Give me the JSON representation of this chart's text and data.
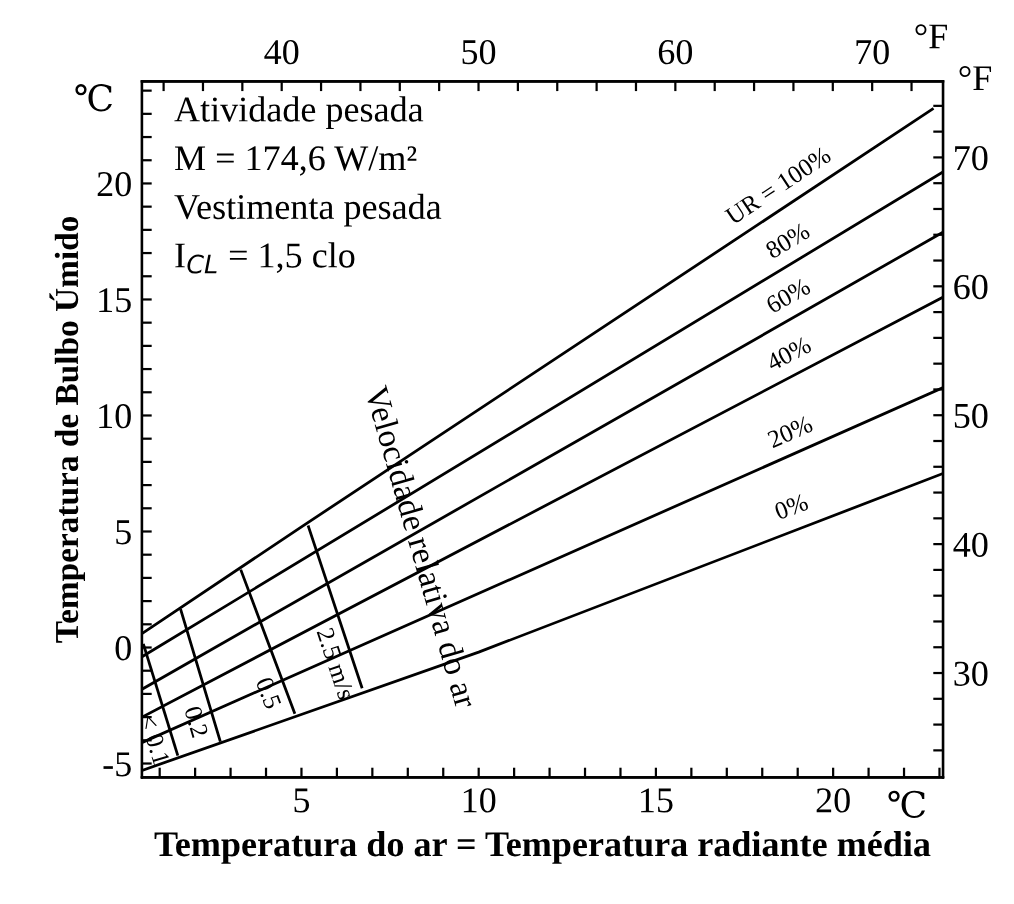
{
  "chart_data": {
    "type": "line",
    "xlabel": "Temperatura do ar = Temperatura radiante média",
    "ylabel": "Temperatura de Bulbo Úmido",
    "annotations": [
      "Atividade pesada",
      "M = 174,6 W/m²",
      "Vestimenta pesada",
      "I$_{CL}$ = 1,5 clo",
      "Velocidade relativa do ar",
      "℃",
      "°F",
      "°F",
      "℃"
    ],
    "xlim": [
      0.5,
      23.1
    ],
    "ylim": [
      -5.6,
      24.4
    ],
    "x2lim": [
      32.9,
      73.6
    ],
    "y2lim": [
      21.9,
      75.9
    ],
    "xticks": [
      {
        "value": 1,
        "label": null
      },
      {
        "value": 2,
        "label": null
      },
      {
        "value": 3,
        "label": null
      },
      {
        "value": 4,
        "label": null
      },
      5,
      {
        "value": 6,
        "label": null
      },
      {
        "value": 7,
        "label": null
      },
      {
        "value": 8,
        "label": null
      },
      {
        "value": 9,
        "label": null
      },
      10,
      {
        "value": 11,
        "label": null
      },
      {
        "value": 12,
        "label": null
      },
      {
        "value": 13,
        "label": null
      },
      {
        "value": 14,
        "label": null
      },
      15,
      {
        "value": 16,
        "label": null
      },
      {
        "value": 17,
        "label": null
      },
      {
        "value": 18,
        "label": null
      },
      {
        "value": 19,
        "label": null
      },
      20,
      {
        "value": 21,
        "label": null
      },
      {
        "value": 22,
        "label": null
      },
      {
        "value": 23,
        "label": null
      }
    ],
    "yticks": [
      -5,
      {
        "value": -4,
        "label": null
      },
      {
        "value": -3,
        "label": null
      },
      {
        "value": -2,
        "label": null
      },
      {
        "value": -1,
        "label": null
      },
      0,
      {
        "value": 1,
        "label": null
      },
      {
        "value": 2,
        "label": null
      },
      {
        "value": 3,
        "label": null
      },
      {
        "value": 4,
        "label": null
      },
      5,
      {
        "value": 6,
        "label": null
      },
      {
        "value": 7,
        "label": null
      },
      {
        "value": 8,
        "label": null
      },
      {
        "value": 9,
        "label": null
      },
      10,
      {
        "value": 11,
        "label": null
      },
      {
        "value": 12,
        "label": null
      },
      {
        "value": 13,
        "label": null
      },
      {
        "value": 14,
        "label": null
      },
      15,
      {
        "value": 16,
        "label": null
      },
      {
        "value": 17,
        "label": null
      },
      {
        "value": 18,
        "label": null
      },
      {
        "value": 19,
        "label": null
      },
      20,
      {
        "value": 21,
        "label": null
      },
      {
        "value": 22,
        "label": null
      },
      {
        "value": 23,
        "label": null
      },
      {
        "value": 24,
        "label": null
      }
    ],
    "x2ticks": [
      {
        "value": 34,
        "label": null
      },
      {
        "value": 36,
        "label": null
      },
      {
        "value": 38,
        "label": null
      },
      40,
      {
        "value": 42,
        "label": null
      },
      {
        "value": 44,
        "label": null
      },
      {
        "value": 46,
        "label": null
      },
      {
        "value": 48,
        "label": null
      },
      50,
      {
        "value": 52,
        "label": null
      },
      {
        "value": 54,
        "label": null
      },
      {
        "value": 56,
        "label": null
      },
      {
        "value": 58,
        "label": null
      },
      60,
      {
        "value": 62,
        "label": null
      },
      {
        "value": 64,
        "label": null
      },
      {
        "value": 66,
        "label": null
      },
      {
        "value": 68,
        "label": null
      },
      70,
      {
        "value": 72,
        "label": null
      }
    ],
    "y2ticks": [
      {
        "value": 24,
        "label": null
      },
      {
        "value": 26,
        "label": null
      },
      {
        "value": 28,
        "label": null
      },
      30,
      {
        "value": 32,
        "label": null
      },
      {
        "value": 34,
        "label": null
      },
      {
        "value": 36,
        "label": null
      },
      {
        "value": 38,
        "label": null
      },
      40,
      {
        "value": 42,
        "label": null
      },
      {
        "value": 44,
        "label": null
      },
      {
        "value": 46,
        "label": null
      },
      {
        "value": 48,
        "label": null
      },
      50,
      {
        "value": 52,
        "label": null
      },
      {
        "value": 54,
        "label": null
      },
      {
        "value": 56,
        "label": null
      },
      {
        "value": 58,
        "label": null
      },
      60,
      {
        "value": 62,
        "label": null
      },
      {
        "value": 64,
        "label": null
      },
      {
        "value": 66,
        "label": null
      },
      {
        "value": 68,
        "label": null
      },
      70,
      {
        "value": 72,
        "label": null
      },
      {
        "value": 74,
        "label": null
      }
    ],
    "grid": false,
    "legend": false,
    "marker": "none",
    "line_style": "solid",
    "series": [
      {
        "name": "UR = 100%",
        "color": "#000000",
        "x": [
          0.5,
          5,
          22.8
        ],
        "values": [
          0.6,
          5.2,
          23.2
        ]
      },
      {
        "name": "80%",
        "color": "#000000",
        "x": [
          0.5,
          23.1
        ],
        "values": [
          -0.4,
          20.5
        ]
      },
      {
        "name": "60%",
        "color": "#000000",
        "x": [
          0.5,
          23.1
        ],
        "values": [
          -1.8,
          17.9
        ]
      },
      {
        "name": "40%",
        "color": "#000000",
        "x": [
          0.5,
          23.1
        ],
        "values": [
          -3.0,
          15.1
        ]
      },
      {
        "name": "20%",
        "color": "#000000",
        "x": [
          0.5,
          23.1
        ],
        "values": [
          -4.1,
          11.2
        ]
      },
      {
        "name": "0%",
        "color": "#000000",
        "x": [
          0.5,
          10,
          23.1
        ],
        "values": [
          -5.3,
          -0.2,
          7.5
        ]
      },
      {
        "name": "< 0.1",
        "color": "#000000",
        "x": [
          0.55,
          1.5
        ],
        "values": [
          0.1,
          -4.6
        ]
      },
      {
        "name": "0.2",
        "color": "#000000",
        "x": [
          1.6,
          2.7
        ],
        "values": [
          1.6,
          -4.0
        ]
      },
      {
        "name": "0.5",
        "color": "#000000",
        "x": [
          3.3,
          4.8
        ],
        "values": [
          3.3,
          -2.8
        ]
      },
      {
        "name": "2.5 m/s",
        "color": "#000000",
        "x": [
          5.2,
          6.7
        ],
        "values": [
          5.2,
          -1.7
        ]
      }
    ]
  }
}
